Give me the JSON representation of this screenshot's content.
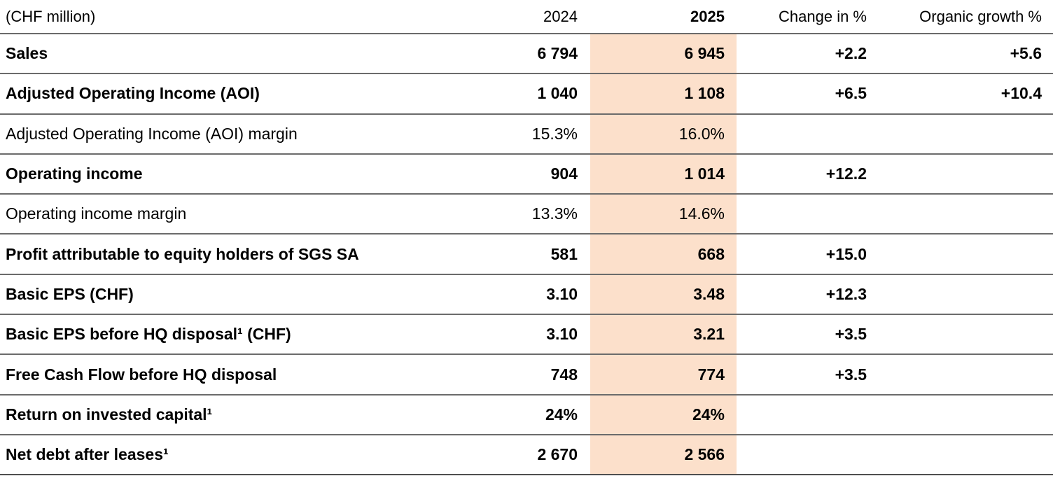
{
  "table": {
    "unit_label": "(CHF million)",
    "highlight_color": "#fce0cb",
    "columns": [
      {
        "label": "2024",
        "bold": false
      },
      {
        "label": "2025",
        "bold": true
      },
      {
        "label": "Change in %",
        "bold": false
      },
      {
        "label": "Organic growth %",
        "bold": false
      }
    ],
    "rows": [
      {
        "label": "Sales",
        "bold": true,
        "y2024": "6 794",
        "y2025": "6 945",
        "change": "+2.2",
        "organic": "+5.6"
      },
      {
        "label": "Adjusted Operating Income (AOI)",
        "bold": true,
        "y2024": "1 040",
        "y2025": "1 108",
        "change": "+6.5",
        "organic": "+10.4"
      },
      {
        "label": "Adjusted Operating Income (AOI) margin",
        "bold": false,
        "y2024": "15.3%",
        "y2025": "16.0%",
        "change": "",
        "organic": ""
      },
      {
        "label": "Operating income",
        "bold": true,
        "y2024": "904",
        "y2025": "1 014",
        "change": "+12.2",
        "organic": ""
      },
      {
        "label": "Operating income margin",
        "bold": false,
        "y2024": "13.3%",
        "y2025": "14.6%",
        "change": "",
        "organic": ""
      },
      {
        "label": "Profit attributable to equity holders of SGS SA",
        "bold": true,
        "y2024": "581",
        "y2025": "668",
        "change": "+15.0",
        "organic": ""
      },
      {
        "label": "Basic EPS (CHF)",
        "bold": true,
        "y2024": "3.10",
        "y2025": "3.48",
        "change": "+12.3",
        "organic": ""
      },
      {
        "label": "Basic EPS before HQ disposal¹ (CHF)",
        "bold": true,
        "y2024": "3.10",
        "y2025": "3.21",
        "change": "+3.5",
        "organic": ""
      },
      {
        "label": "Free Cash Flow before HQ disposal",
        "bold": true,
        "y2024": "748",
        "y2025": "774",
        "change": "+3.5",
        "organic": ""
      },
      {
        "label": "Return on invested capital¹",
        "bold": true,
        "y2024": "24%",
        "y2025": "24%",
        "change": "",
        "organic": ""
      },
      {
        "label": "Net debt after leases¹",
        "bold": true,
        "y2024": "2 670",
        "y2025": "2 566",
        "change": "",
        "organic": ""
      }
    ]
  }
}
